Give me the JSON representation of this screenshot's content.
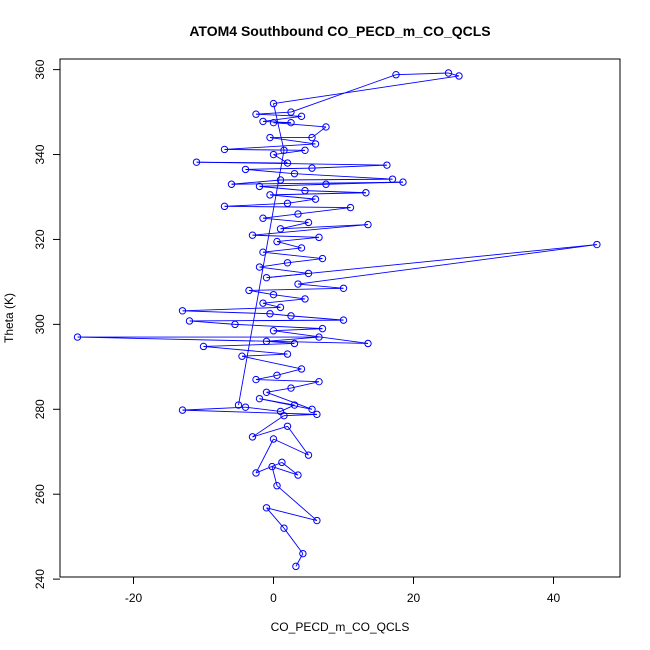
{
  "chart_data": {
    "type": "scatter",
    "title": "ATOM4 Southbound CO_PECD_m_CO_QCLS",
    "xlabel": "CO_PECD_m_CO_QCLS",
    "ylabel": "Theta (K)",
    "xlim": [
      -30.5,
      49.5
    ],
    "ylim": [
      240.5,
      362.5
    ],
    "x_ticks": [
      -20,
      0,
      20,
      40
    ],
    "y_ticks": [
      240,
      260,
      280,
      300,
      320,
      340,
      360
    ],
    "grid": false,
    "legend": "none",
    "line_color": "#0000ff",
    "marker": "open-circle",
    "series": [
      {
        "points": [
          [
            3.2,
            243.0
          ],
          [
            4.2,
            246.0
          ],
          [
            1.5,
            252.0
          ],
          [
            -1.0,
            256.8
          ],
          [
            6.2,
            253.8
          ],
          [
            0.5,
            262.0
          ],
          [
            -0.2,
            266.5
          ],
          [
            3.5,
            264.5
          ],
          [
            1.2,
            267.5
          ],
          [
            -2.5,
            265.0
          ],
          [
            0.0,
            273.0
          ],
          [
            5.0,
            269.2
          ],
          [
            2.0,
            276.0
          ],
          [
            -3.0,
            273.5
          ],
          [
            1.5,
            278.5
          ],
          [
            6.2,
            278.8
          ],
          [
            -13.0,
            279.8
          ],
          [
            -4.0,
            280.5
          ],
          [
            1.0,
            279.5
          ],
          [
            3.0,
            281.0
          ],
          [
            -2.0,
            282.5
          ],
          [
            5.5,
            280.0
          ],
          [
            -1.0,
            284.0
          ],
          [
            2.5,
            285.0
          ],
          [
            6.5,
            286.5
          ],
          [
            -2.5,
            287.0
          ],
          [
            0.5,
            288.0
          ],
          [
            4.0,
            289.5
          ],
          [
            -4.5,
            292.5
          ],
          [
            2.0,
            293.0
          ],
          [
            -10.0,
            294.8
          ],
          [
            3.0,
            295.5
          ],
          [
            -1.0,
            296.0
          ],
          [
            6.5,
            297.0
          ],
          [
            -28.0,
            297.0
          ],
          [
            13.5,
            295.5
          ],
          [
            0.0,
            298.5
          ],
          [
            7.0,
            299.0
          ],
          [
            -5.5,
            300.0
          ],
          [
            -12.0,
            300.8
          ],
          [
            10.0,
            301.0
          ],
          [
            2.5,
            302.0
          ],
          [
            -0.5,
            302.5
          ],
          [
            -13.0,
            303.2
          ],
          [
            1.0,
            304.0
          ],
          [
            -1.5,
            305.0
          ],
          [
            4.5,
            306.0
          ],
          [
            0.0,
            307.0
          ],
          [
            -3.5,
            308.0
          ],
          [
            10.0,
            308.5
          ],
          [
            3.5,
            309.5
          ],
          [
            46.2,
            318.8
          ],
          [
            -1.0,
            311.0
          ],
          [
            5.0,
            312.0
          ],
          [
            -2.0,
            313.5
          ],
          [
            2.0,
            314.5
          ],
          [
            7.0,
            315.5
          ],
          [
            -1.5,
            317.0
          ],
          [
            4.0,
            318.0
          ],
          [
            0.5,
            319.5
          ],
          [
            6.5,
            320.5
          ],
          [
            -3.0,
            321.0
          ],
          [
            13.5,
            323.5
          ],
          [
            1.0,
            322.5
          ],
          [
            5.0,
            324.0
          ],
          [
            -1.5,
            325.0
          ],
          [
            3.5,
            326.0
          ],
          [
            11.0,
            327.5
          ],
          [
            -7.0,
            327.8
          ],
          [
            2.0,
            328.5
          ],
          [
            6.0,
            329.5
          ],
          [
            -0.5,
            330.5
          ],
          [
            13.2,
            331.0
          ],
          [
            4.5,
            331.5
          ],
          [
            -2.0,
            332.5
          ],
          [
            7.5,
            333.0
          ],
          [
            18.5,
            333.5
          ],
          [
            -6.0,
            333.0
          ],
          [
            1.0,
            334.0
          ],
          [
            17.0,
            334.2
          ],
          [
            3.0,
            335.5
          ],
          [
            -4.0,
            336.5
          ],
          [
            5.5,
            336.8
          ],
          [
            16.2,
            337.5
          ],
          [
            -11.0,
            338.2
          ],
          [
            2.0,
            338.0
          ],
          [
            0.0,
            340.0
          ],
          [
            4.5,
            341.0
          ],
          [
            -7.0,
            341.2
          ],
          [
            6.0,
            342.5
          ],
          [
            -0.5,
            344.0
          ],
          [
            5.5,
            344.0
          ],
          [
            7.5,
            346.5
          ],
          [
            0.0,
            347.5
          ],
          [
            2.5,
            347.5
          ],
          [
            -1.5,
            347.8
          ],
          [
            4.0,
            349.0
          ],
          [
            -2.5,
            349.5
          ],
          [
            2.5,
            350.0
          ],
          [
            17.5,
            358.8
          ],
          [
            25.0,
            359.2
          ],
          [
            26.5,
            358.5
          ],
          [
            0.0,
            352.0
          ],
          [
            1.5,
            341.0
          ],
          [
            -5.0,
            281.0
          ]
        ]
      }
    ]
  }
}
